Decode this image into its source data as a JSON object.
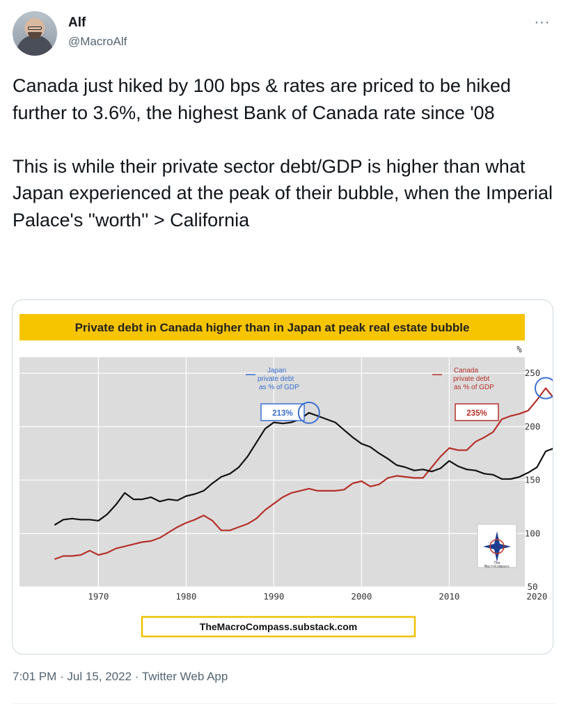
{
  "user": {
    "display_name": "Alf",
    "handle": "@MacroAlf"
  },
  "more_label": "···",
  "tweet": {
    "text": "Canada just hiked by 100 bps & rates are priced to be hiked further to 3.6%, the highest Bank of Canada rate since '08\n\nThis is while their private sector debt/GDP is higher than what Japan experienced at the peak of their bubble, when the Imperial Palace's ''worth'' > California"
  },
  "meta": {
    "timestamp": "7:01 PM · Jul 15, 2022 · Twitter Web App"
  },
  "colors": {
    "japan": "#111111",
    "canada": "#b5302a",
    "banner": "#f7c400",
    "plot_bg": "#dcdcdc",
    "highlight_circle": "#3b6fd1",
    "footer_border": "#f0c000"
  },
  "chart_data": {
    "type": "line",
    "title": "Private debt in Canada higher than in Japan at peak real estate bubble",
    "unit_label": "%",
    "xlim": [
      1965,
      2023
    ],
    "ylim": [
      50,
      265
    ],
    "x_ticks": [
      1970,
      1980,
      1990,
      2000,
      2010,
      2020
    ],
    "y_ticks": [
      50,
      100,
      150,
      200,
      250
    ],
    "legend": [
      {
        "name_lines": [
          "Japan",
          "private debt",
          "as % of GDP"
        ],
        "callout": "213%"
      },
      {
        "name_lines": [
          "Canada",
          "private debt",
          "as % of GDP"
        ],
        "callout": "235%"
      }
    ],
    "series": [
      {
        "name": "Japan",
        "x": [
          1965,
          1966,
          1967,
          1968,
          1969,
          1970,
          1971,
          1972,
          1973,
          1974,
          1975,
          1976,
          1977,
          1978,
          1979,
          1980,
          1981,
          1982,
          1983,
          1984,
          1985,
          1986,
          1987,
          1988,
          1989,
          1990,
          1991,
          1992,
          1993,
          1994,
          1995,
          1996,
          1997,
          1998,
          1999,
          2000,
          2001,
          2002,
          2003,
          2004,
          2005,
          2006,
          2007,
          2008,
          2009,
          2010,
          2011,
          2012,
          2013,
          2014,
          2015,
          2016,
          2017,
          2018,
          2019,
          2020,
          2021,
          2022
        ],
        "values": [
          108,
          113,
          114,
          113,
          113,
          112,
          118,
          127,
          138,
          132,
          132,
          134,
          130,
          132,
          131,
          135,
          137,
          140,
          147,
          153,
          156,
          162,
          172,
          185,
          198,
          204,
          203,
          204,
          207,
          213,
          210,
          207,
          204,
          197,
          190,
          184,
          181,
          175,
          170,
          164,
          162,
          159,
          160,
          158,
          161,
          168,
          163,
          160,
          159,
          156,
          155,
          151,
          151,
          153,
          157,
          162,
          177,
          180
        ]
      },
      {
        "name": "Canada",
        "x": [
          1965,
          1966,
          1967,
          1968,
          1969,
          1970,
          1971,
          1972,
          1973,
          1974,
          1975,
          1976,
          1977,
          1978,
          1979,
          1980,
          1981,
          1982,
          1983,
          1984,
          1985,
          1986,
          1987,
          1988,
          1989,
          1990,
          1991,
          1992,
          1993,
          1994,
          1995,
          1996,
          1997,
          1998,
          1999,
          2000,
          2001,
          2002,
          2003,
          2004,
          2005,
          2006,
          2007,
          2008,
          2009,
          2010,
          2011,
          2012,
          2013,
          2014,
          2015,
          2016,
          2017,
          2018,
          2019,
          2020,
          2021,
          2022
        ],
        "values": [
          76,
          79,
          79,
          80,
          84,
          80,
          82,
          86,
          88,
          90,
          92,
          93,
          96,
          101,
          106,
          110,
          113,
          117,
          112,
          103,
          103,
          106,
          109,
          114,
          122,
          128,
          134,
          138,
          140,
          142,
          140,
          140,
          140,
          141,
          147,
          149,
          144,
          146,
          152,
          154,
          153,
          152,
          152,
          162,
          172,
          180,
          178,
          178,
          186,
          190,
          195,
          207,
          210,
          212,
          215,
          225,
          236,
          226
        ]
      }
    ],
    "footer": "TheMacroCompass.substack.com",
    "logo_text": [
      "The",
      "MacroCompass"
    ]
  }
}
